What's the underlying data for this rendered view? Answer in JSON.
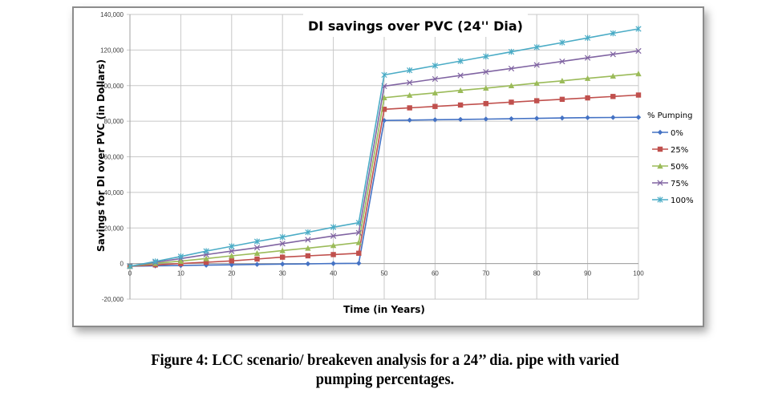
{
  "chart_data": {
    "type": "line",
    "title": "DI savings over PVC (24'' Dia)",
    "xlabel": "Time (in Years)",
    "ylabel": "Savings for DI over PVC (in Dollars)",
    "xlim": [
      0,
      100
    ],
    "ylim": [
      -20000,
      140000
    ],
    "x_ticks": [
      "0",
      "10",
      "20",
      "30",
      "40",
      "50",
      "60",
      "70",
      "80",
      "90",
      "100"
    ],
    "y_ticks": [
      "140,000",
      "120,000",
      "100,000",
      "80,000",
      "60,000",
      "40,000",
      "20,000",
      "0",
      "-20,000"
    ],
    "grid": true,
    "legend_title": "% Pumping",
    "legend_position": "right",
    "x": [
      0,
      5,
      10,
      15,
      20,
      25,
      30,
      35,
      40,
      45,
      50,
      55,
      60,
      65,
      70,
      75,
      80,
      85,
      90,
      95,
      100
    ],
    "series": [
      {
        "name": "0%",
        "color": "#4472c4",
        "marker": "diamond",
        "values": [
          -1500,
          -1300,
          -1100,
          -900,
          -700,
          -500,
          -300,
          -150,
          0,
          150,
          80400,
          80600,
          80800,
          81000,
          81200,
          81400,
          81600,
          81800,
          82000,
          82100,
          82200
        ]
      },
      {
        "name": "25%",
        "color": "#c0504d",
        "marker": "square",
        "values": [
          -1500,
          -750,
          0,
          750,
          1500,
          2550,
          3600,
          4350,
          5050,
          5800,
          86700,
          87500,
          88300,
          89100,
          89900,
          90700,
          91500,
          92300,
          93100,
          93900,
          94700
        ]
      },
      {
        "name": "50%",
        "color": "#9bbb59",
        "marker": "triangle",
        "values": [
          -1500,
          150,
          1350,
          2800,
          4350,
          5800,
          7300,
          8650,
          10150,
          11800,
          93200,
          94600,
          95900,
          97300,
          98600,
          100000,
          101400,
          102700,
          104100,
          105400,
          106700
        ]
      },
      {
        "name": "75%",
        "color": "#8064a2",
        "marker": "x",
        "values": [
          -1500,
          750,
          2800,
          5000,
          7000,
          8950,
          11200,
          13400,
          15500,
          17300,
          99700,
          101700,
          103700,
          105700,
          107700,
          109600,
          111600,
          113600,
          115600,
          117600,
          119500
        ]
      },
      {
        "name": "100%",
        "color": "#4bacc6",
        "marker": "star",
        "values": [
          -1500,
          1200,
          4000,
          7000,
          9700,
          12400,
          14900,
          17600,
          20450,
          22950,
          106000,
          108600,
          111200,
          113800,
          116400,
          119000,
          121600,
          124200,
          126800,
          129400,
          131900
        ]
      }
    ]
  },
  "caption": {
    "line1": "Figure 4: LCC scenario/ breakeven analysis for a 24’’ dia. pipe with varied",
    "line2": "pumping percentages."
  }
}
